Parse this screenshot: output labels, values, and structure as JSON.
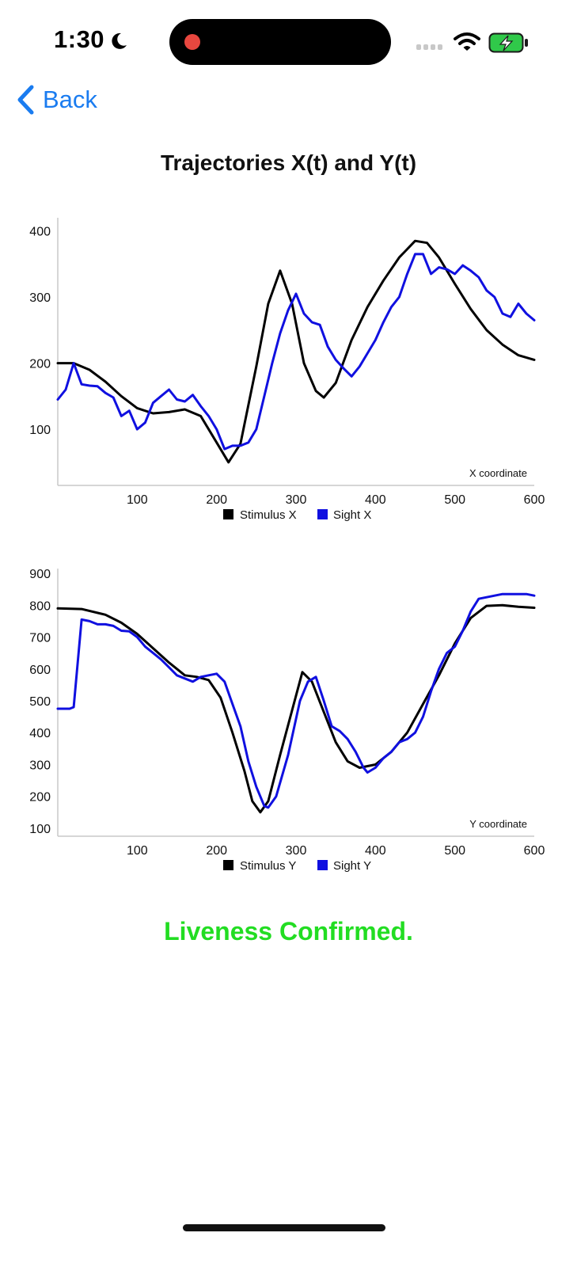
{
  "status_bar": {
    "time": "1:30",
    "icons": [
      "moon-icon",
      "signal-icon",
      "wifi-icon",
      "battery-charging-icon"
    ]
  },
  "nav": {
    "back_label": "Back"
  },
  "page": {
    "title": "Trajectories X(t) and Y(t)",
    "status_message": "Liveness Confirmed.",
    "status_color": "#22dd22"
  },
  "colors": {
    "accent": "#1a7cf0",
    "stimulus": "#000000",
    "sight": "#1010e0"
  },
  "chart_data": [
    {
      "type": "line",
      "id": "x",
      "annotation": "X coordinate",
      "x_ticks": [
        100,
        200,
        300,
        400,
        500,
        600
      ],
      "y_ticks": [
        100,
        200,
        300,
        400
      ],
      "xlim": [
        0,
        600
      ],
      "ylim": [
        15,
        420
      ],
      "series": [
        {
          "name": "Stimulus X",
          "color": "#000000",
          "points": [
            [
              0,
              200
            ],
            [
              20,
              200
            ],
            [
              40,
              190
            ],
            [
              60,
              172
            ],
            [
              80,
              150
            ],
            [
              100,
              132
            ],
            [
              120,
              124
            ],
            [
              140,
              126
            ],
            [
              160,
              130
            ],
            [
              180,
              120
            ],
            [
              200,
              80
            ],
            [
              215,
              50
            ],
            [
              230,
              78
            ],
            [
              250,
              195
            ],
            [
              265,
              290
            ],
            [
              280,
              340
            ],
            [
              295,
              290
            ],
            [
              310,
              200
            ],
            [
              325,
              158
            ],
            [
              335,
              148
            ],
            [
              350,
              170
            ],
            [
              370,
              235
            ],
            [
              390,
              285
            ],
            [
              410,
              325
            ],
            [
              430,
              360
            ],
            [
              450,
              385
            ],
            [
              465,
              382
            ],
            [
              480,
              360
            ],
            [
              500,
              320
            ],
            [
              520,
              282
            ],
            [
              540,
              250
            ],
            [
              560,
              228
            ],
            [
              580,
              212
            ],
            [
              600,
              205
            ]
          ]
        },
        {
          "name": "Sight X",
          "color": "#1010e0",
          "points": [
            [
              0,
              145
            ],
            [
              10,
              160
            ],
            [
              20,
              200
            ],
            [
              30,
              168
            ],
            [
              40,
              166
            ],
            [
              50,
              165
            ],
            [
              60,
              155
            ],
            [
              70,
              148
            ],
            [
              80,
              120
            ],
            [
              90,
              128
            ],
            [
              100,
              100
            ],
            [
              110,
              110
            ],
            [
              120,
              140
            ],
            [
              130,
              150
            ],
            [
              140,
              160
            ],
            [
              150,
              145
            ],
            [
              160,
              142
            ],
            [
              170,
              152
            ],
            [
              180,
              135
            ],
            [
              190,
              120
            ],
            [
              200,
              100
            ],
            [
              210,
              70
            ],
            [
              220,
              75
            ],
            [
              230,
              75
            ],
            [
              240,
              80
            ],
            [
              250,
              100
            ],
            [
              260,
              150
            ],
            [
              270,
              200
            ],
            [
              280,
              245
            ],
            [
              290,
              280
            ],
            [
              300,
              305
            ],
            [
              310,
              275
            ],
            [
              320,
              262
            ],
            [
              330,
              258
            ],
            [
              340,
              225
            ],
            [
              350,
              205
            ],
            [
              360,
              192
            ],
            [
              370,
              180
            ],
            [
              380,
              195
            ],
            [
              390,
              215
            ],
            [
              400,
              235
            ],
            [
              410,
              262
            ],
            [
              420,
              285
            ],
            [
              430,
              300
            ],
            [
              440,
              335
            ],
            [
              450,
              365
            ],
            [
              460,
              365
            ],
            [
              470,
              335
            ],
            [
              480,
              345
            ],
            [
              490,
              342
            ],
            [
              500,
              335
            ],
            [
              510,
              348
            ],
            [
              520,
              340
            ],
            [
              530,
              330
            ],
            [
              540,
              310
            ],
            [
              550,
              300
            ],
            [
              560,
              275
            ],
            [
              570,
              270
            ],
            [
              580,
              290
            ],
            [
              590,
              275
            ],
            [
              600,
              265
            ]
          ]
        }
      ]
    },
    {
      "type": "line",
      "id": "y",
      "annotation": "Y coordinate",
      "x_ticks": [
        100,
        200,
        300,
        400,
        500,
        600
      ],
      "y_ticks": [
        100,
        200,
        300,
        400,
        500,
        600,
        700,
        800,
        900
      ],
      "xlim": [
        0,
        600
      ],
      "ylim": [
        75,
        915
      ],
      "series": [
        {
          "name": "Stimulus Y",
          "color": "#000000",
          "points": [
            [
              0,
              790
            ],
            [
              30,
              788
            ],
            [
              60,
              770
            ],
            [
              80,
              745
            ],
            [
              100,
              710
            ],
            [
              120,
              665
            ],
            [
              140,
              620
            ],
            [
              160,
              580
            ],
            [
              175,
              575
            ],
            [
              190,
              565
            ],
            [
              205,
              510
            ],
            [
              220,
              400
            ],
            [
              235,
              280
            ],
            [
              245,
              185
            ],
            [
              255,
              150
            ],
            [
              265,
              185
            ],
            [
              280,
              330
            ],
            [
              295,
              470
            ],
            [
              308,
              590
            ],
            [
              320,
              560
            ],
            [
              335,
              465
            ],
            [
              350,
              370
            ],
            [
              365,
              310
            ],
            [
              380,
              290
            ],
            [
              400,
              300
            ],
            [
              420,
              340
            ],
            [
              440,
              400
            ],
            [
              460,
              490
            ],
            [
              480,
              580
            ],
            [
              500,
              680
            ],
            [
              520,
              760
            ],
            [
              540,
              798
            ],
            [
              560,
              800
            ],
            [
              580,
              795
            ],
            [
              600,
              792
            ]
          ]
        },
        {
          "name": "Sight Y",
          "color": "#1010e0",
          "points": [
            [
              0,
              475
            ],
            [
              15,
              475
            ],
            [
              20,
              480
            ],
            [
              30,
              755
            ],
            [
              40,
              750
            ],
            [
              50,
              740
            ],
            [
              60,
              740
            ],
            [
              70,
              735
            ],
            [
              80,
              720
            ],
            [
              90,
              718
            ],
            [
              100,
              700
            ],
            [
              110,
              670
            ],
            [
              120,
              650
            ],
            [
              130,
              630
            ],
            [
              140,
              605
            ],
            [
              150,
              580
            ],
            [
              160,
              570
            ],
            [
              170,
              560
            ],
            [
              180,
              575
            ],
            [
              190,
              580
            ],
            [
              200,
              585
            ],
            [
              210,
              560
            ],
            [
              220,
              490
            ],
            [
              230,
              420
            ],
            [
              240,
              310
            ],
            [
              250,
              230
            ],
            [
              260,
              170
            ],
            [
              265,
              165
            ],
            [
              275,
              200
            ],
            [
              290,
              330
            ],
            [
              305,
              500
            ],
            [
              315,
              560
            ],
            [
              325,
              575
            ],
            [
              335,
              500
            ],
            [
              345,
              420
            ],
            [
              355,
              405
            ],
            [
              365,
              380
            ],
            [
              375,
              340
            ],
            [
              385,
              290
            ],
            [
              390,
              275
            ],
            [
              400,
              290
            ],
            [
              410,
              320
            ],
            [
              420,
              340
            ],
            [
              430,
              370
            ],
            [
              440,
              380
            ],
            [
              450,
              400
            ],
            [
              460,
              450
            ],
            [
              470,
              530
            ],
            [
              480,
              600
            ],
            [
              490,
              650
            ],
            [
              500,
              670
            ],
            [
              510,
              720
            ],
            [
              520,
              780
            ],
            [
              530,
              820
            ],
            [
              540,
              825
            ],
            [
              550,
              830
            ],
            [
              560,
              835
            ],
            [
              570,
              835
            ],
            [
              580,
              835
            ],
            [
              590,
              835
            ],
            [
              600,
              830
            ]
          ]
        }
      ]
    }
  ]
}
